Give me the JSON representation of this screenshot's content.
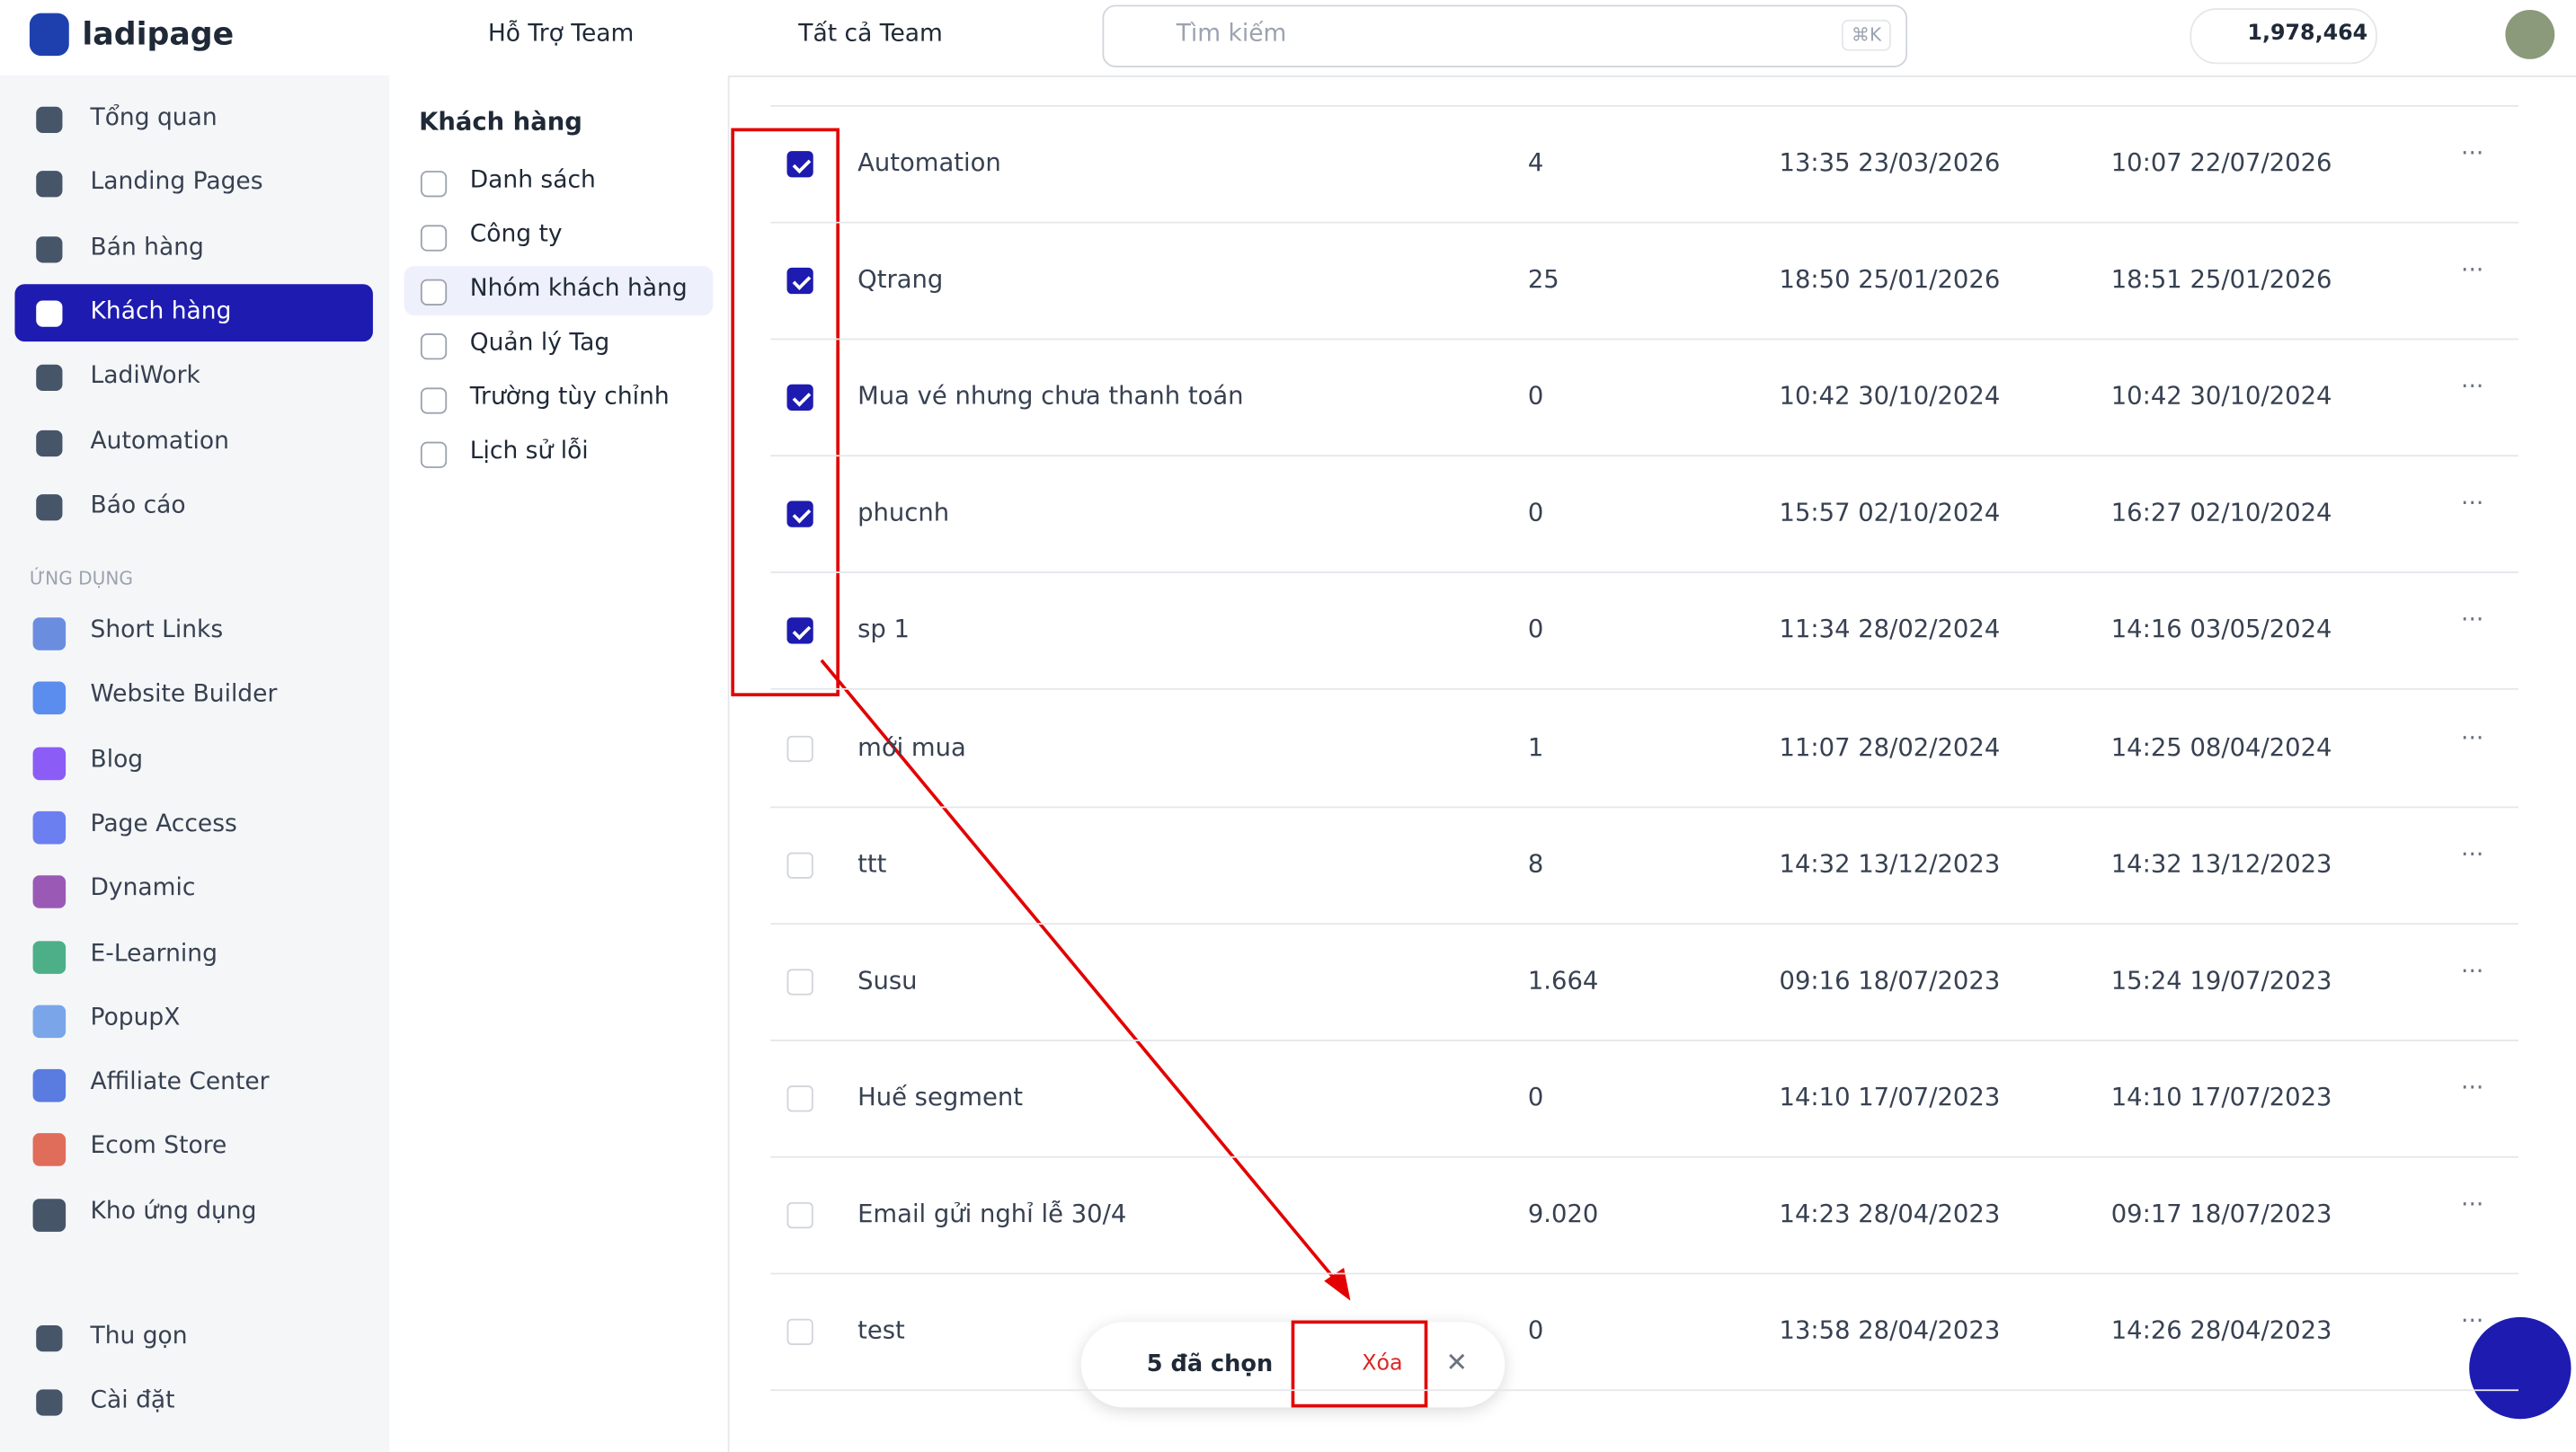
{
  "header": {
    "logo": "ladipage",
    "team": "Hỗ Trợ Team",
    "team_filter": "Tất cả Team",
    "search_placeholder": "Tìm kiếm",
    "search_shortcut": "⌘K",
    "balance": "1,978,464"
  },
  "sidebar": {
    "main": [
      "Tổng quan",
      "Landing Pages",
      "Bán hàng",
      "Khách hàng",
      "LadiWork",
      "Automation",
      "Báo cáo"
    ],
    "active": 3,
    "section": "ỨNG DỤNG",
    "apps": [
      "Short Links",
      "Website Builder",
      "Blog",
      "Page Access",
      "Dynamic",
      "E-Learning",
      "PopupX",
      "Affiliate Center",
      "Ecom Store",
      "Kho ứng dụng"
    ],
    "footer": [
      "Thu gọn",
      "Cài đặt"
    ]
  },
  "submenu": {
    "title": "Khách hàng",
    "items": [
      "Danh sách",
      "Công ty",
      "Nhóm khách hàng",
      "Quản lý Tag",
      "Trường tùy chỉnh",
      "Lịch sử lỗi"
    ],
    "active": 2
  },
  "table": {
    "rows": [
      [
        "Automation",
        "4",
        "13:35 23/03/2026",
        "10:07 22/07/2026"
      ],
      [
        "Qtrang",
        "25",
        "18:50 25/01/2026",
        "18:51 25/01/2026"
      ],
      [
        "Mua vé nhưng chưa thanh toán",
        "0",
        "10:42 30/10/2024",
        "10:42 30/10/2024"
      ],
      [
        "phucnh",
        "0",
        "15:57 02/10/2024",
        "16:27 02/10/2024"
      ],
      [
        "sp 1",
        "0",
        "11:34 28/02/2024",
        "14:16 03/05/2024"
      ],
      [
        "mới mua",
        "1",
        "11:07 28/02/2024",
        "14:25 08/04/2024"
      ],
      [
        "ttt",
        "8",
        "14:32 13/12/2023",
        "14:32 13/12/2023"
      ],
      [
        "Susu",
        "1.664",
        "09:16 18/07/2023",
        "15:24 19/07/2023"
      ],
      [
        "Huế segment",
        "0",
        "14:10 17/07/2023",
        "14:10 17/07/2023"
      ],
      [
        "Email gửi nghỉ lễ 30/4",
        "9.020",
        "14:23 28/04/2023",
        "09:17 18/07/2023"
      ],
      [
        "test",
        "0",
        "13:58 28/04/2023",
        "14:26 28/04/2023"
      ]
    ],
    "checked": [
      true,
      true,
      true,
      true,
      true,
      false,
      false,
      false,
      false,
      false,
      false
    ]
  },
  "selection": {
    "count_label": "5 đã chọn",
    "delete": "Xóa"
  }
}
